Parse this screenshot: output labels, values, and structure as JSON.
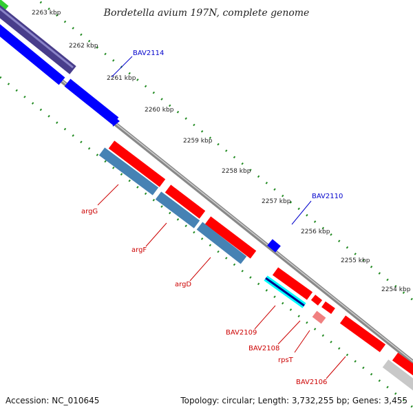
{
  "title": "Bordetella avium 197N, complete genome",
  "ruler_labels": [
    "2263 kbp",
    "2262 kbp",
    "2261 kbp",
    "2260 kbp",
    "2259 kbp",
    "2258 kbp",
    "2257 kbp",
    "2256 kbp",
    "2255 kbp",
    "2254 kbp"
  ],
  "gene_labels": {
    "bav2114": "BAV2114",
    "bav2110": "BAV2110",
    "argG": "argG",
    "argF": "argF",
    "argD": "argD",
    "bav2109": "BAV2109",
    "bav2108": "BAV2108",
    "rpsT": "rpsT",
    "bav2106": "BAV2106"
  },
  "footer": {
    "accession": "Accession: NC_010645",
    "summary": "Topology: circular; Length: 3,732,255 bp; Genes: 3,455"
  },
  "colors": {
    "forward_cds": "#ff0000",
    "reverse_cds": "#4682b4",
    "forward_blue": "#0000ff",
    "dark_blue": "#483d8b",
    "rRNA_pink": "#f08080",
    "cyan": "#00ffff",
    "green_ticks": "#228b22",
    "backbone": "#888888",
    "label_red": "#cc0000",
    "label_blue": "#0000cc"
  }
}
